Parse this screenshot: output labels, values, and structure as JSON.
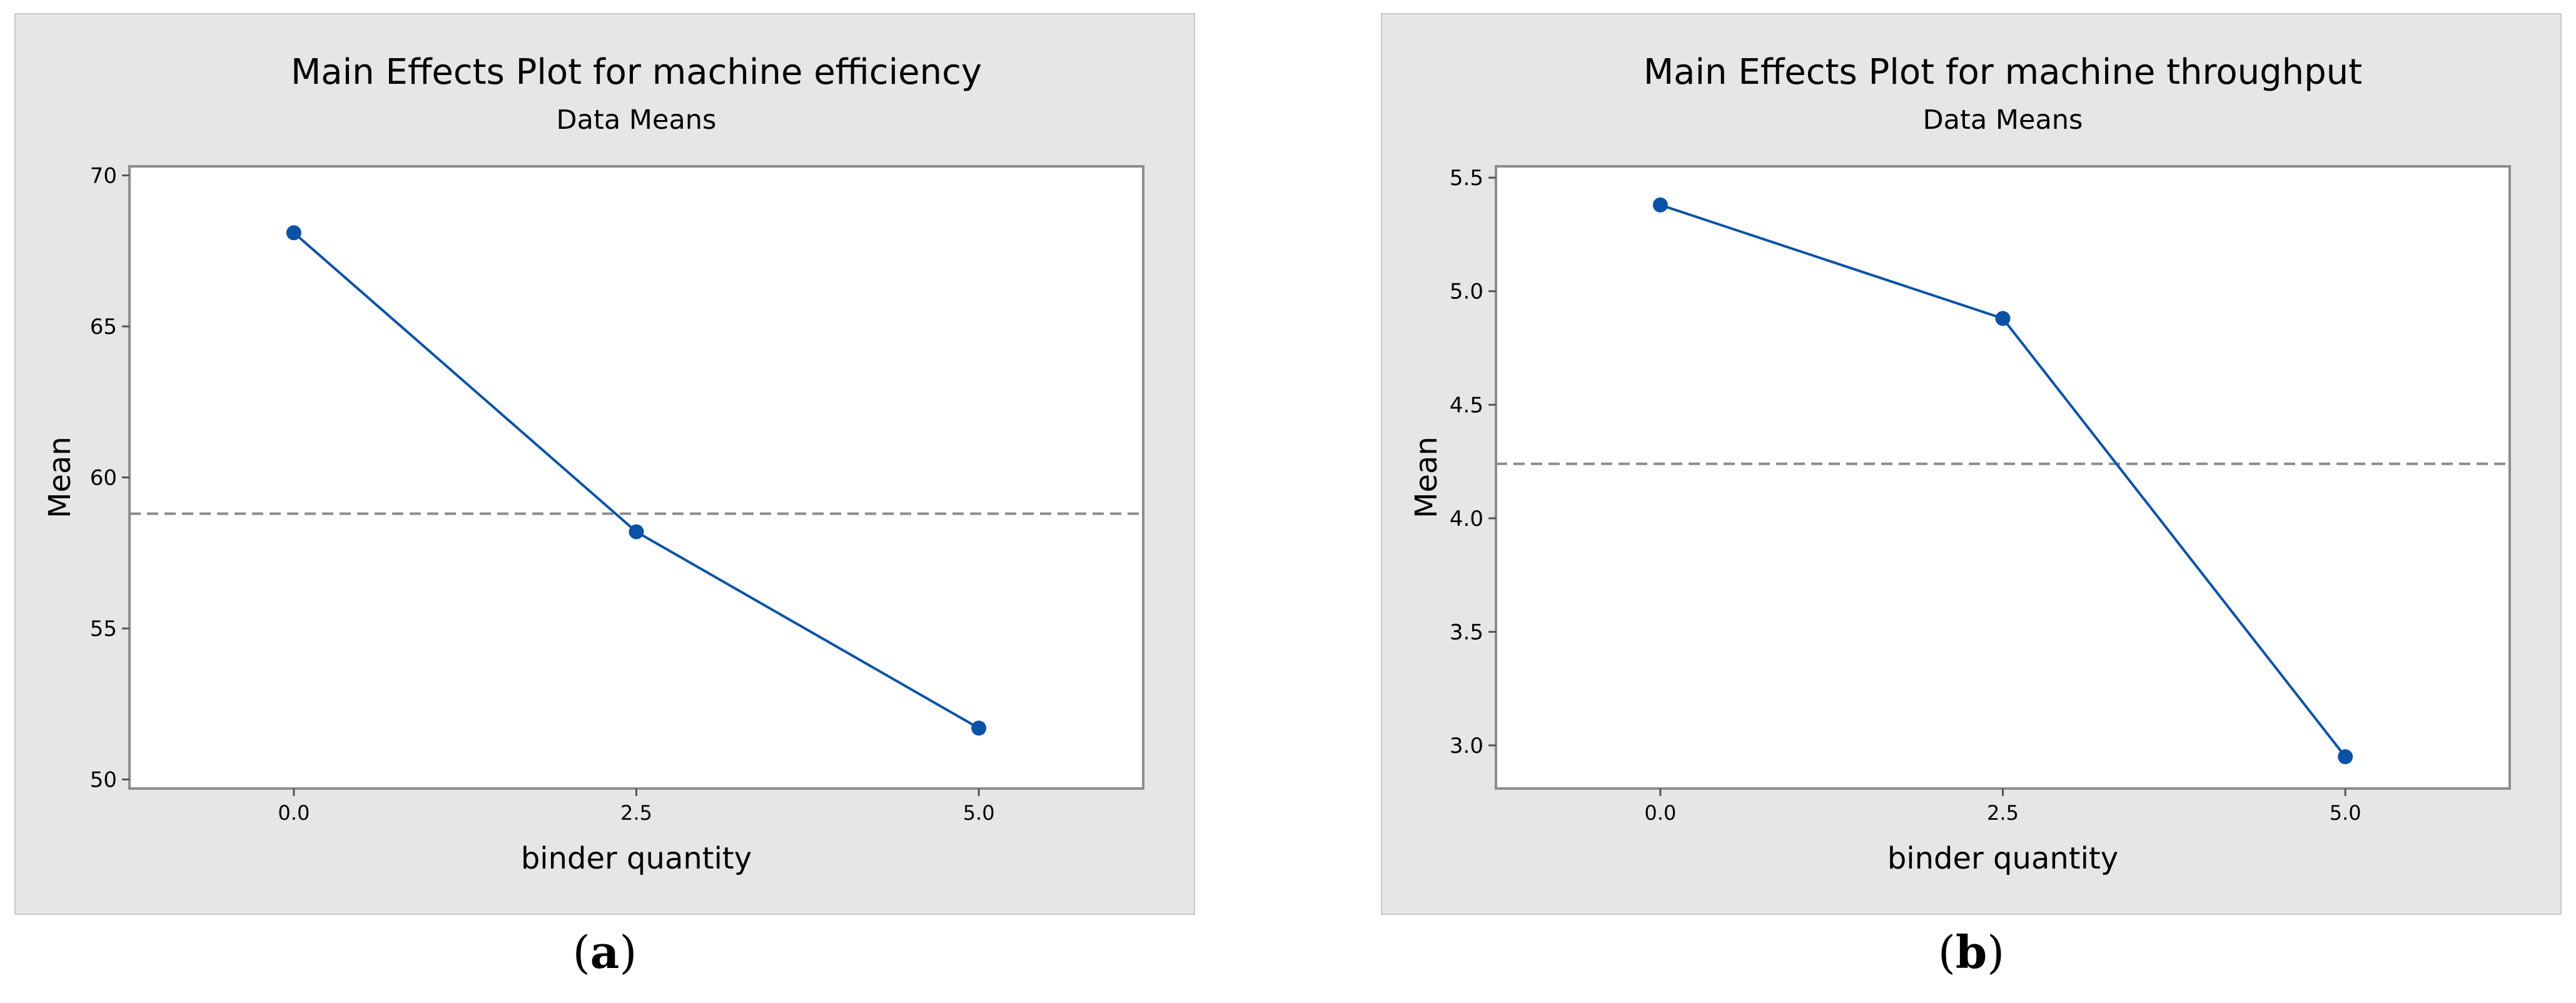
{
  "chart_data": [
    {
      "type": "line",
      "title": "Main Effects Plot for machine efficiency",
      "subtitle": "Data Means",
      "xlabel": "binder quantity",
      "ylabel": "Mean",
      "categories": [
        "0.0",
        "2.5",
        "5.0"
      ],
      "x": [
        0.0,
        2.5,
        5.0
      ],
      "values": [
        68.1,
        58.2,
        51.7
      ],
      "mean_reference": 58.8,
      "yticks": [
        50,
        55,
        60,
        65,
        70
      ],
      "ytick_labels": [
        "50",
        "55",
        "60",
        "65",
        "70"
      ],
      "ylim": [
        49.7,
        70.3
      ],
      "grid": false,
      "line_color": "#0b52a6",
      "reference_color": "#8c8c8c"
    },
    {
      "type": "line",
      "title": "Main Effects Plot for machine throughput",
      "subtitle": "Data Means",
      "xlabel": "binder quantity",
      "ylabel": "Mean",
      "categories": [
        "0.0",
        "2.5",
        "5.0"
      ],
      "x": [
        0.0,
        2.5,
        5.0
      ],
      "values": [
        5.38,
        4.88,
        2.95
      ],
      "mean_reference": 4.24,
      "yticks": [
        3.0,
        3.5,
        4.0,
        4.5,
        5.0,
        5.5
      ],
      "ytick_labels": [
        "3.0",
        "3.5",
        "4.0",
        "4.5",
        "5.0",
        "5.5"
      ],
      "ylim": [
        2.81,
        5.55
      ],
      "grid": false,
      "line_color": "#0b52a6",
      "reference_color": "#8c8c8c"
    }
  ],
  "captions": [
    {
      "open": "(",
      "letter": "a",
      "close": ")"
    },
    {
      "open": "(",
      "letter": "b",
      "close": ")"
    }
  ]
}
